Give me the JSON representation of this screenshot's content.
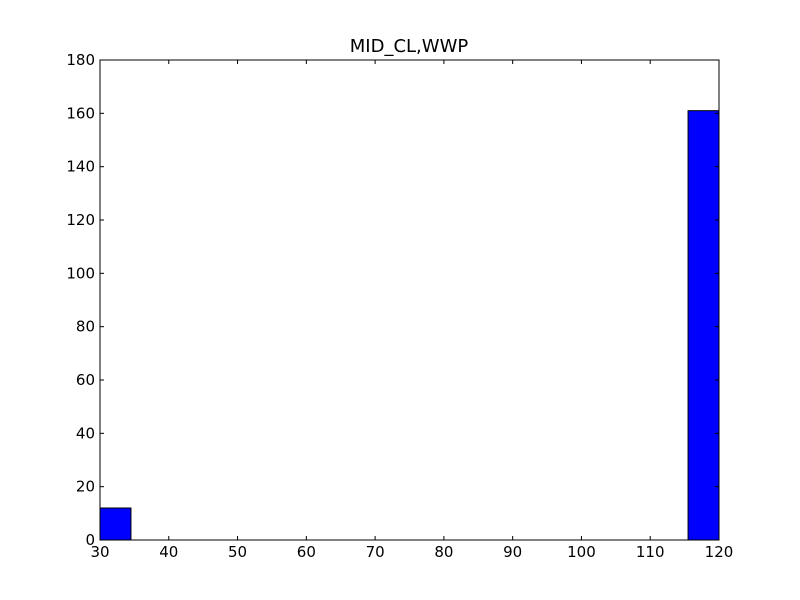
{
  "chart_data": {
    "type": "bar",
    "title": "MID_CL,WWP",
    "xlabel": "",
    "ylabel": "",
    "xlim": [
      30,
      120
    ],
    "ylim": [
      0,
      180
    ],
    "x_ticks": [
      "30",
      "40",
      "50",
      "60",
      "70",
      "80",
      "90",
      "100",
      "110",
      "120"
    ],
    "y_ticks": [
      "0",
      "20",
      "40",
      "60",
      "80",
      "100",
      "120",
      "140",
      "160",
      "180"
    ],
    "bin_width": 4.5,
    "bins": [
      {
        "start": 30.0,
        "value": 12
      },
      {
        "start": 34.5,
        "value": 0
      },
      {
        "start": 39.0,
        "value": 0
      },
      {
        "start": 43.5,
        "value": 0
      },
      {
        "start": 48.0,
        "value": 0
      },
      {
        "start": 52.5,
        "value": 0
      },
      {
        "start": 57.0,
        "value": 0
      },
      {
        "start": 61.5,
        "value": 0
      },
      {
        "start": 66.0,
        "value": 0
      },
      {
        "start": 70.5,
        "value": 0
      },
      {
        "start": 75.0,
        "value": 0
      },
      {
        "start": 79.5,
        "value": 0
      },
      {
        "start": 84.0,
        "value": 0
      },
      {
        "start": 88.5,
        "value": 0
      },
      {
        "start": 93.0,
        "value": 0
      },
      {
        "start": 97.5,
        "value": 0
      },
      {
        "start": 102.0,
        "value": 0
      },
      {
        "start": 106.5,
        "value": 0
      },
      {
        "start": 111.0,
        "value": 0
      },
      {
        "start": 115.5,
        "value": 161
      }
    ],
    "grid": false,
    "legend": "none",
    "colors": {
      "bar_fill": "#0000ff",
      "bar_edge": "#000000",
      "axes": "#000000",
      "background": "#ffffff"
    }
  }
}
